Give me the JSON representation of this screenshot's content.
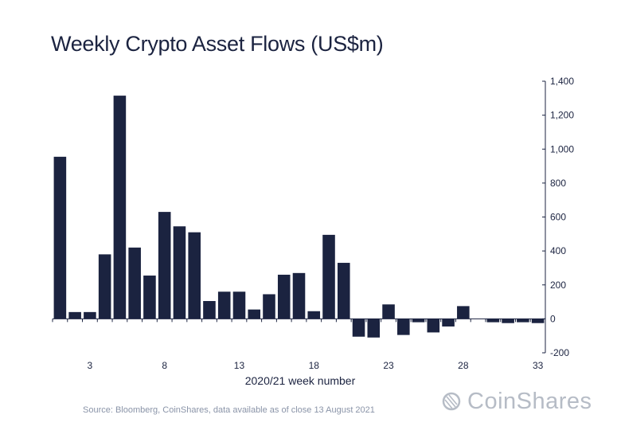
{
  "header": {
    "title": "Weekly Crypto Asset Flows (US$m)"
  },
  "footer": {
    "source": "Source: Bloomberg, CoinShares, data available as of close 13 August 2021",
    "brand": "CoinShares"
  },
  "colors": {
    "bar": "#1b2340",
    "axis": "#1b2340",
    "brand_grey": "#b6bcc6"
  },
  "chart_data": {
    "type": "bar",
    "title": "Weekly Crypto Asset Flows (US$m)",
    "xlabel": "2020/21 week number",
    "ylabel": "",
    "ylim": [
      -200,
      1400
    ],
    "y_ticks": [
      -200,
      0,
      200,
      400,
      600,
      800,
      1000,
      1200,
      1400
    ],
    "y_tick_labels": [
      "-200",
      "0",
      "200",
      "400",
      "600",
      "800",
      "1,000",
      "1,200",
      "1,400"
    ],
    "y_axis_position": "right",
    "x_tick_labels": [
      "3",
      "8",
      "13",
      "18",
      "23",
      "28",
      "33"
    ],
    "x_tick_weeks": [
      3,
      8,
      13,
      18,
      23,
      28,
      33
    ],
    "grid": false,
    "categories": [
      1,
      2,
      3,
      4,
      5,
      6,
      7,
      8,
      9,
      10,
      11,
      12,
      13,
      14,
      15,
      16,
      17,
      18,
      19,
      20,
      21,
      22,
      23,
      24,
      25,
      26,
      27,
      28,
      29,
      30,
      31,
      32,
      33
    ],
    "values": [
      955,
      40,
      40,
      380,
      1315,
      420,
      255,
      630,
      545,
      510,
      105,
      160,
      160,
      55,
      145,
      260,
      270,
      45,
      495,
      330,
      -105,
      -110,
      85,
      -95,
      -20,
      -80,
      -45,
      75,
      0,
      -20,
      -25,
      -20,
      -25
    ]
  }
}
